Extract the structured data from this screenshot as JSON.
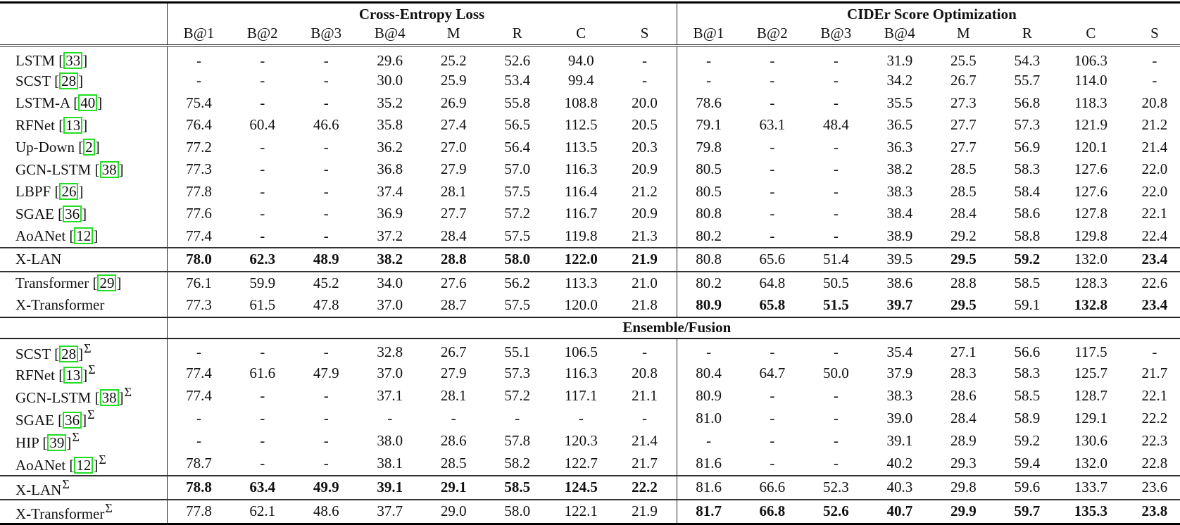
{
  "table": {
    "groups": [
      "Cross-Entropy Loss",
      "CIDEr Score Optimization"
    ],
    "section_label": "Ensemble/Fusion",
    "columns": [
      "B@1",
      "B@2",
      "B@3",
      "B@4",
      "M",
      "R",
      "C",
      "S"
    ],
    "single_model_rows": [
      {
        "name": "LSTM",
        "cite": "33",
        "ensemble": false,
        "values": [
          "-",
          "-",
          "-",
          "29.6",
          "25.2",
          "52.6",
          "94.0",
          "-",
          "-",
          "-",
          "-",
          "31.9",
          "25.5",
          "54.3",
          "106.3",
          "-"
        ],
        "bold": []
      },
      {
        "name": "SCST",
        "cite": "28",
        "ensemble": false,
        "values": [
          "-",
          "-",
          "-",
          "30.0",
          "25.9",
          "53.4",
          "99.4",
          "-",
          "-",
          "-",
          "-",
          "34.2",
          "26.7",
          "55.7",
          "114.0",
          "-"
        ],
        "bold": []
      },
      {
        "name": "LSTM-A",
        "cite": "40",
        "ensemble": false,
        "values": [
          "75.4",
          "-",
          "-",
          "35.2",
          "26.9",
          "55.8",
          "108.8",
          "20.0",
          "78.6",
          "-",
          "-",
          "35.5",
          "27.3",
          "56.8",
          "118.3",
          "20.8"
        ],
        "bold": []
      },
      {
        "name": "RFNet",
        "cite": "13",
        "ensemble": false,
        "values": [
          "76.4",
          "60.4",
          "46.6",
          "35.8",
          "27.4",
          "56.5",
          "112.5",
          "20.5",
          "79.1",
          "63.1",
          "48.4",
          "36.5",
          "27.7",
          "57.3",
          "121.9",
          "21.2"
        ],
        "bold": []
      },
      {
        "name": "Up-Down",
        "cite": "2",
        "ensemble": false,
        "values": [
          "77.2",
          "-",
          "-",
          "36.2",
          "27.0",
          "56.4",
          "113.5",
          "20.3",
          "79.8",
          "-",
          "-",
          "36.3",
          "27.7",
          "56.9",
          "120.1",
          "21.4"
        ],
        "bold": []
      },
      {
        "name": "GCN-LSTM",
        "cite": "38",
        "ensemble": false,
        "values": [
          "77.3",
          "-",
          "-",
          "36.8",
          "27.9",
          "57.0",
          "116.3",
          "20.9",
          "80.5",
          "-",
          "-",
          "38.2",
          "28.5",
          "58.3",
          "127.6",
          "22.0"
        ],
        "bold": []
      },
      {
        "name": "LBPF",
        "cite": "26",
        "ensemble": false,
        "values": [
          "77.8",
          "-",
          "-",
          "37.4",
          "28.1",
          "57.5",
          "116.4",
          "21.2",
          "80.5",
          "-",
          "-",
          "38.3",
          "28.5",
          "58.4",
          "127.6",
          "22.0"
        ],
        "bold": []
      },
      {
        "name": "SGAE",
        "cite": "36",
        "ensemble": false,
        "values": [
          "77.6",
          "-",
          "-",
          "36.9",
          "27.7",
          "57.2",
          "116.7",
          "20.9",
          "80.8",
          "-",
          "-",
          "38.4",
          "28.4",
          "58.6",
          "127.8",
          "22.1"
        ],
        "bold": []
      },
      {
        "name": "AoANet",
        "cite": "12",
        "ensemble": false,
        "values": [
          "77.4",
          "-",
          "-",
          "37.2",
          "28.4",
          "57.5",
          "119.8",
          "21.3",
          "80.2",
          "-",
          "-",
          "38.9",
          "29.2",
          "58.8",
          "129.8",
          "22.4"
        ],
        "bold": []
      },
      {
        "name": "X-LAN",
        "cite": "",
        "ensemble": false,
        "values": [
          "78.0",
          "62.3",
          "48.9",
          "38.2",
          "28.8",
          "58.0",
          "122.0",
          "21.9",
          "80.8",
          "65.6",
          "51.4",
          "39.5",
          "29.5",
          "59.2",
          "132.0",
          "23.4"
        ],
        "bold": [
          0,
          1,
          2,
          3,
          4,
          5,
          6,
          7,
          12,
          13,
          15
        ]
      },
      {
        "name": "Transformer",
        "cite": "29",
        "ensemble": false,
        "values": [
          "76.1",
          "59.9",
          "45.2",
          "34.0",
          "27.6",
          "56.2",
          "113.3",
          "21.0",
          "80.2",
          "64.8",
          "50.5",
          "38.6",
          "28.8",
          "58.5",
          "128.3",
          "22.6"
        ],
        "bold": []
      },
      {
        "name": "X-Transformer",
        "cite": "",
        "ensemble": false,
        "values": [
          "77.3",
          "61.5",
          "47.8",
          "37.0",
          "28.7",
          "57.5",
          "120.0",
          "21.8",
          "80.9",
          "65.8",
          "51.5",
          "39.7",
          "29.5",
          "59.1",
          "132.8",
          "23.4"
        ],
        "bold": [
          8,
          9,
          10,
          11,
          12,
          14,
          15
        ]
      }
    ],
    "ensemble_rows": [
      {
        "name": "SCST",
        "cite": "28",
        "ensemble": true,
        "values": [
          "-",
          "-",
          "-",
          "32.8",
          "26.7",
          "55.1",
          "106.5",
          "-",
          "-",
          "-",
          "-",
          "35.4",
          "27.1",
          "56.6",
          "117.5",
          "-"
        ],
        "bold": []
      },
      {
        "name": "RFNet",
        "cite": "13",
        "ensemble": true,
        "values": [
          "77.4",
          "61.6",
          "47.9",
          "37.0",
          "27.9",
          "57.3",
          "116.3",
          "20.8",
          "80.4",
          "64.7",
          "50.0",
          "37.9",
          "28.3",
          "58.3",
          "125.7",
          "21.7"
        ],
        "bold": []
      },
      {
        "name": "GCN-LSTM",
        "cite": "38",
        "ensemble": true,
        "values": [
          "77.4",
          "-",
          "-",
          "37.1",
          "28.1",
          "57.2",
          "117.1",
          "21.1",
          "80.9",
          "-",
          "-",
          "38.3",
          "28.6",
          "58.5",
          "128.7",
          "22.1"
        ],
        "bold": []
      },
      {
        "name": "SGAE",
        "cite": "36",
        "ensemble": true,
        "values": [
          "-",
          "-",
          "-",
          "-",
          "-",
          "-",
          "-",
          "-",
          "81.0",
          "-",
          "-",
          "39.0",
          "28.4",
          "58.9",
          "129.1",
          "22.2"
        ],
        "bold": []
      },
      {
        "name": "HIP",
        "cite": "39",
        "ensemble": true,
        "values": [
          "-",
          "-",
          "-",
          "38.0",
          "28.6",
          "57.8",
          "120.3",
          "21.4",
          "-",
          "-",
          "-",
          "39.1",
          "28.9",
          "59.2",
          "130.6",
          "22.3"
        ],
        "bold": []
      },
      {
        "name": "AoANet",
        "cite": "12",
        "ensemble": true,
        "values": [
          "78.7",
          "-",
          "-",
          "38.1",
          "28.5",
          "58.2",
          "122.7",
          "21.7",
          "81.6",
          "-",
          "-",
          "40.2",
          "29.3",
          "59.4",
          "132.0",
          "22.8"
        ],
        "bold": []
      },
      {
        "name": "X-LAN",
        "cite": "",
        "ensemble": true,
        "values": [
          "78.8",
          "63.4",
          "49.9",
          "39.1",
          "29.1",
          "58.5",
          "124.5",
          "22.2",
          "81.6",
          "66.6",
          "52.3",
          "40.3",
          "29.8",
          "59.6",
          "133.7",
          "23.6"
        ],
        "bold": [
          0,
          1,
          2,
          3,
          4,
          5,
          6,
          7
        ]
      },
      {
        "name": "X-Transformer",
        "cite": "",
        "ensemble": true,
        "values": [
          "77.8",
          "62.1",
          "48.6",
          "37.7",
          "29.0",
          "58.0",
          "122.1",
          "21.9",
          "81.7",
          "66.8",
          "52.6",
          "40.7",
          "29.9",
          "59.7",
          "135.3",
          "23.8"
        ],
        "bold": [
          8,
          9,
          10,
          11,
          12,
          13,
          14,
          15
        ]
      }
    ],
    "ensemble_marker": "Σ",
    "cite_box_color": "#22dd22"
  }
}
